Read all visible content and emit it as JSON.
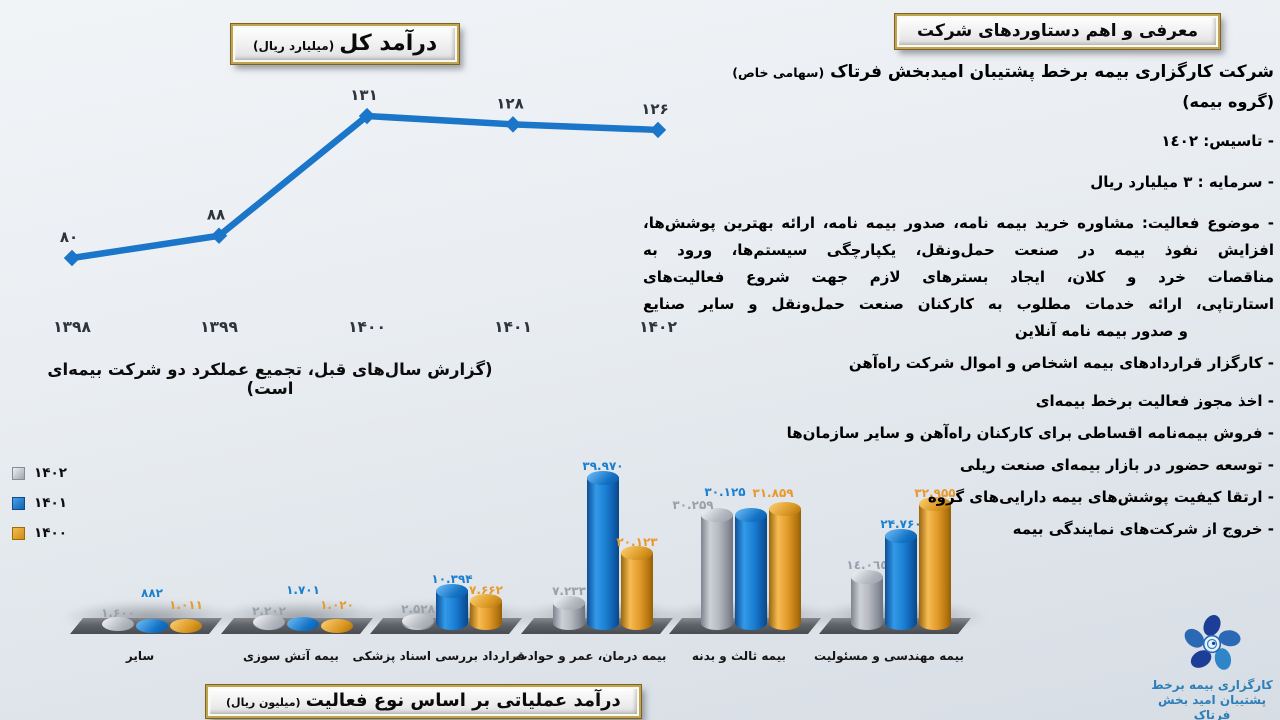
{
  "colors": {
    "line_blue": "#1b75c8",
    "bar_gray": "#b7bac2",
    "bar_blue": "#1b80d4",
    "bar_orange": "#e39b2a",
    "label_gray": "#9aa0aa",
    "label_blue": "#1b7fd0",
    "label_orange": "#e8992c",
    "plaque_border_gold": "#c2a350",
    "logo_text_blue": "#2e7eb8"
  },
  "chart_data": [
    {
      "type": "line",
      "title": "درآمد کل",
      "unit_label": "(میلیارد ریال)",
      "x": [
        "۱۳۹۸",
        "۱۳۹۹",
        "۱۴۰۰",
        "۱۴۰۱",
        "۱۴۰۲"
      ],
      "values": [
        80,
        88,
        131,
        128,
        126
      ],
      "point_labels": [
        "۸۰",
        "۸۸",
        "۱۳۱",
        "۱۲۸",
        "۱۲۶"
      ],
      "note": "(گزارش سال‌های قبل، تجمیع عملکرد دو شرکت بیمه‌ای است)",
      "line_color": "#1b75c8",
      "grid": false,
      "ylim": [
        70,
        140
      ],
      "legend_position": "none"
    },
    {
      "type": "bar",
      "title": "درآمد عملیاتی بر اساس نوع فعالیت",
      "unit_label": "(میلیون ریال)",
      "categories": [
        "سایر",
        "بیمه آتش سوزی",
        "قرارداد بررسی اسناد پزشکی",
        "بیمه درمان، عمر و حوادث",
        "بیمه ثالث و بدنه",
        "بیمه مهندسی و مسئولیت"
      ],
      "series": [
        {
          "name": "۱۴۰۲",
          "color": "#b7bac2",
          "label_color": "#9aa0aa",
          "values": [
            1600,
            2202,
            2528,
            7233,
            30259,
            14065
          ],
          "labels": [
            "۱.۶۰۰",
            "۲.۲۰۲",
            "۲.۵۲۸",
            "۷.۲۳۳",
            "۳۰.۲۵۹",
            "١٤.٠٦٥"
          ]
        },
        {
          "name": "۱۴۰۱",
          "color": "#1b80d4",
          "label_color": "#1b7fd0",
          "values": [
            882,
            1701,
            10394,
            39970,
            30125,
            24760
          ],
          "labels": [
            "۸۸۲",
            "۱.۷۰۱",
            "۱۰.۳۹۴",
            "۳۹.۹۷۰",
            "۳۰.۱۲۵",
            "۲۴.۷۶۰"
          ]
        },
        {
          "name": "۱۴۰۰",
          "color": "#e39b2a",
          "label_color": "#e8992c",
          "values": [
            1011,
            1020,
            7662,
            20123,
            31859,
            32955
          ],
          "labels": [
            "۱.۰۱۱",
            "۱.۰۲۰",
            "۷.۶۶۲",
            "۲۰.۱۲۳",
            "۳۱.۸۵۹",
            "۳۲.۹۵۵"
          ]
        }
      ],
      "legend_position": "top-left",
      "ylim": [
        0,
        42000
      ],
      "grid": false
    }
  ],
  "right_panel": {
    "heading": "معرفی و اهم دستاوردهای شرکت",
    "company_title": "شرکت کارگزاری بیمه برخط پشتیبان امیدبخش فرتاک",
    "company_suffix": "(سهامی خاص)",
    "company_group": "(گروه بیمه)",
    "facts": [
      "- تاسیس: ١٤٠٢",
      "- سرمایه : ٣ میلیارد ریال"
    ],
    "activity_para_lines": [
      "- موضوع  فعالیت: مشاوره خرید بیمه نامه، صدور بیمه نامه، ارائه بهترین پوشش‌ها،",
      "افزایش نفوذ بیمه در صنعت حمل‌ونقل، یکپارچگی سیستم‌ها، ورود به",
      "مناقصات خرد و کلان، ایجاد بسترهای لازم جهت شروع فعالیت‌های",
      "استارتاپی، ارائه خدمات مطلوب به کارکنان صنعت حمل‌ونقل و سایر صنایع",
      "و صدور بیمه نامه آنلاین"
    ],
    "achievements": [
      "- کارگزار قراردادهای بیمه اشخاص و اموال شرکت راه‌آهن",
      "- اخذ مجوز فعالیت برخط  بیمه‌ای",
      "- فروش بیمه‌نامه اقساطی برای کارکنان راه‌آهن و سایر سازمان‌ها",
      "- توسعه حضور در بازار بیمه‌ای صنعت ریلی",
      "- ارتقا کیفیت پوشش‌های بیمه دارایی‌های گروه",
      "- خروج از شرکت‌های نمایندگی بیمه"
    ]
  },
  "logo": {
    "line1": "کارگزاری بیمه برخط",
    "line2": "پشتیبان امید بخش فرتاک"
  }
}
